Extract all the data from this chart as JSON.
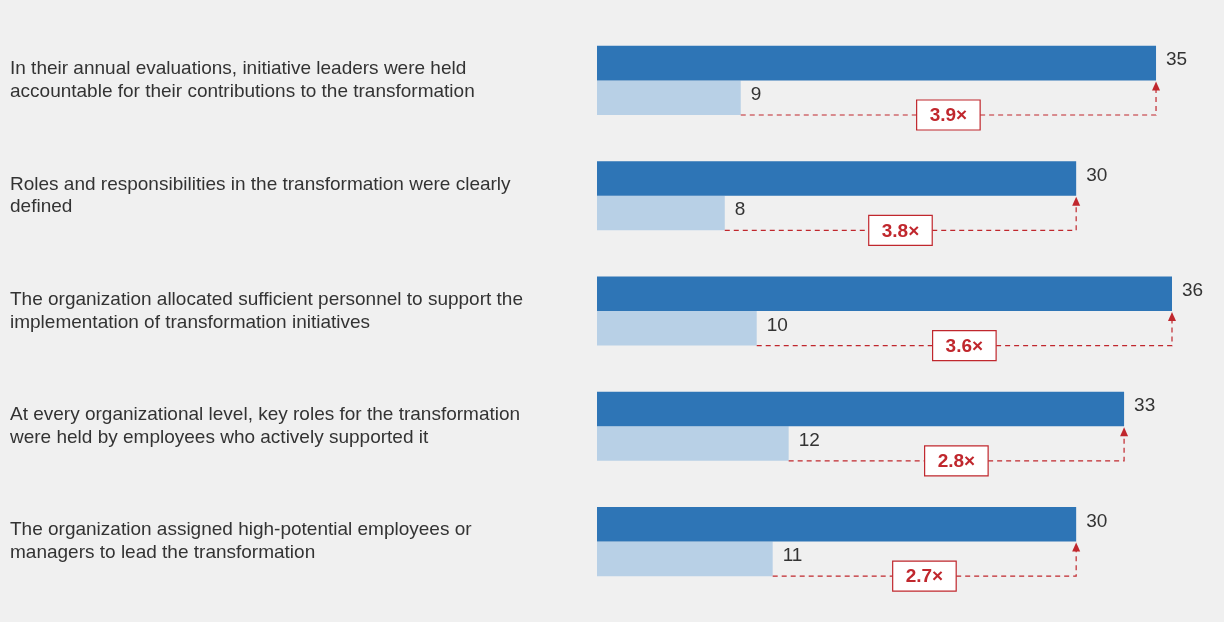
{
  "chart_data": {
    "type": "bar",
    "orientation": "horizontal",
    "data_labels": true,
    "legend": false,
    "tick_labels": "y",
    "categories": [
      "In their annual evaluations, initiative leaders were held accountable for their contributions to the transformation",
      "Roles and responsibilities in the transformation were clearly defined",
      "The organization allocated sufficient personnel to support the implementation of transformation initiatives",
      "At every organizational level, key roles for the transformation were held by employees who actively supported it",
      "The organization assigned high-potential employees or managers to lead the transformation"
    ],
    "series": [
      {
        "color": "#2e75b6",
        "values": [
          35,
          30,
          36,
          33,
          30
        ]
      },
      {
        "color": "#b8d0e6",
        "values": [
          9,
          8,
          10,
          12,
          11
        ]
      }
    ],
    "annotations": [
      {
        "text": "3.9×",
        "x": 22,
        "y": "In their annual evaluations, initiative leaders were held accountable for their contributions to the transformation"
      },
      {
        "text": "3.8×",
        "x": 19,
        "y": "Roles and responsibilities in the transformation were clearly defined"
      },
      {
        "text": "3.6×",
        "x": 23,
        "y": "The organization allocated sufficient personnel to support the implementation of transformation initiatives"
      },
      {
        "text": "2.8×",
        "x": 22.5,
        "y": "At every organizational level, key roles for the transformation were held by employees who actively supported it"
      },
      {
        "text": "2.7×",
        "x": 20.5,
        "y": "The organization assigned high-potential employees or managers to lead the transformation"
      }
    ]
  }
}
